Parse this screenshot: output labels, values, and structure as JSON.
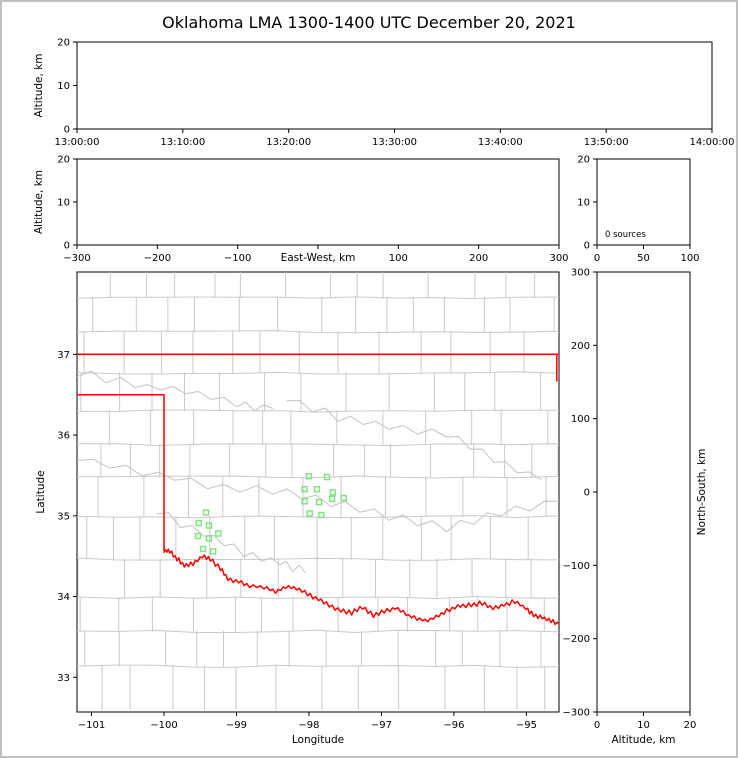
{
  "title": "Oklahoma LMA 1300-1400 UTC December 20, 2021",
  "colors": {
    "page_border": "#c0c0c0",
    "axis": "#000000",
    "text": "#000000",
    "state_border": "#ff0000",
    "county_line": "#c9c9c9",
    "river_line": "#c2c2c2",
    "station": "#7be37b"
  },
  "chart_data": [
    {
      "name": "time-height",
      "type": "scatter",
      "xlabel": "",
      "ylabel": "Altitude, km",
      "xtick_labels": [
        "13:00:00",
        "13:10:00",
        "13:20:00",
        "13:30:00",
        "13:40:00",
        "13:50:00",
        "14:00:00"
      ],
      "ylim": [
        0,
        20
      ],
      "yticks": [
        0,
        10,
        20
      ],
      "points": []
    },
    {
      "name": "ew-height",
      "type": "scatter",
      "xlabel": "East-West, km",
      "ylabel": "Altitude, km",
      "xlim": [
        -300,
        300
      ],
      "xticks": [
        -300,
        -200,
        -100,
        0,
        100,
        200,
        300
      ],
      "hidden_xtick_label": 0,
      "ylim": [
        0,
        20
      ],
      "yticks": [
        0,
        10,
        20
      ],
      "points": []
    },
    {
      "name": "altitude-histogram",
      "type": "bar",
      "annotation": "0 sources",
      "xlim": [
        0,
        100
      ],
      "xticks": [
        0,
        50,
        100
      ],
      "ylim": [
        0,
        20
      ],
      "yticks": [
        0,
        10,
        20
      ],
      "values": []
    },
    {
      "name": "plan-view-map",
      "type": "scatter",
      "xlabel": "Longitude",
      "ylabel": "Latitude",
      "xlim": [
        -101.2,
        -94.55
      ],
      "xticks": [
        -101,
        -100,
        -99,
        -98,
        -97,
        -96,
        -95
      ],
      "ylim": [
        32.57,
        38.02
      ],
      "yticks": [
        33,
        34,
        35,
        36,
        37
      ],
      "stations": [
        [
          -98.0,
          35.49
        ],
        [
          -97.75,
          35.48
        ],
        [
          -98.06,
          35.33
        ],
        [
          -97.89,
          35.33
        ],
        [
          -97.67,
          35.29
        ],
        [
          -98.06,
          35.18
        ],
        [
          -97.86,
          35.17
        ],
        [
          -97.68,
          35.21
        ],
        [
          -97.99,
          35.03
        ],
        [
          -97.83,
          35.01
        ],
        [
          -97.52,
          35.22
        ],
        [
          -99.42,
          35.04
        ],
        [
          -99.52,
          34.91
        ],
        [
          -99.38,
          34.88
        ],
        [
          -99.53,
          34.75
        ],
        [
          -99.38,
          34.72
        ],
        [
          -99.25,
          34.78
        ],
        [
          -99.46,
          34.59
        ],
        [
          -99.32,
          34.56
        ]
      ],
      "state_border": {
        "north": [
          [
            -101.2,
            37.0
          ],
          [
            -94.55,
            37.0
          ]
        ],
        "east": [
          [
            -94.58,
            37.0
          ],
          [
            -94.58,
            36.67
          ]
        ],
        "panhandle": [
          [
            -101.2,
            36.5
          ],
          [
            -100.0,
            36.5
          ],
          [
            -100.0,
            34.57
          ]
        ],
        "red_river": [
          [
            -100.0,
            34.57
          ],
          [
            -99.92,
            34.56
          ],
          [
            -99.82,
            34.47
          ],
          [
            -99.72,
            34.39
          ],
          [
            -99.6,
            34.41
          ],
          [
            -99.47,
            34.5
          ],
          [
            -99.36,
            34.46
          ],
          [
            -99.22,
            34.35
          ],
          [
            -99.12,
            34.22
          ],
          [
            -98.97,
            34.19
          ],
          [
            -98.82,
            34.13
          ],
          [
            -98.62,
            34.12
          ],
          [
            -98.46,
            34.06
          ],
          [
            -98.32,
            34.12
          ],
          [
            -98.17,
            34.11
          ],
          [
            -98.02,
            34.03
          ],
          [
            -97.87,
            33.97
          ],
          [
            -97.72,
            33.9
          ],
          [
            -97.56,
            33.82
          ],
          [
            -97.41,
            33.8
          ],
          [
            -97.26,
            33.87
          ],
          [
            -97.11,
            33.77
          ],
          [
            -96.96,
            33.82
          ],
          [
            -96.81,
            33.86
          ],
          [
            -96.66,
            33.78
          ],
          [
            -96.51,
            33.72
          ],
          [
            -96.36,
            33.7
          ],
          [
            -96.21,
            33.77
          ],
          [
            -96.06,
            33.84
          ],
          [
            -95.91,
            33.88
          ],
          [
            -95.76,
            33.9
          ],
          [
            -95.61,
            33.92
          ],
          [
            -95.46,
            33.86
          ],
          [
            -95.31,
            33.9
          ],
          [
            -95.16,
            33.94
          ],
          [
            -95.01,
            33.86
          ],
          [
            -94.9,
            33.77
          ],
          [
            -94.78,
            33.74
          ],
          [
            -94.66,
            33.7
          ],
          [
            -94.55,
            33.66
          ]
        ]
      },
      "rivers": [
        [
          [
            -101.2,
            35.72
          ],
          [
            -100.3,
            35.55
          ],
          [
            -99.4,
            35.38
          ],
          [
            -98.5,
            35.32
          ],
          [
            -97.7,
            35.16
          ],
          [
            -96.9,
            35.0
          ],
          [
            -96.1,
            34.86
          ],
          [
            -95.35,
            35.05
          ],
          [
            -94.55,
            35.18
          ]
        ],
        [
          [
            -98.3,
            36.45
          ],
          [
            -97.6,
            36.22
          ],
          [
            -96.9,
            36.12
          ],
          [
            -96.1,
            36.0
          ],
          [
            -95.45,
            35.7
          ],
          [
            -94.8,
            35.45
          ]
        ],
        [
          [
            -100.1,
            35.05
          ],
          [
            -99.45,
            34.78
          ],
          [
            -98.9,
            34.55
          ],
          [
            -98.4,
            34.42
          ],
          [
            -98.05,
            34.3
          ]
        ],
        [
          [
            -101.2,
            36.78
          ],
          [
            -100.4,
            36.62
          ],
          [
            -99.7,
            36.55
          ],
          [
            -99.0,
            36.38
          ],
          [
            -98.5,
            36.33
          ]
        ]
      ]
    },
    {
      "name": "ns-height",
      "type": "scatter",
      "xlabel": "Altitude, km",
      "ylabel": "North-South, km",
      "xlim": [
        0,
        20
      ],
      "xticks": [
        0,
        10,
        20
      ],
      "ylim": [
        -300,
        300
      ],
      "yticks": [
        -300,
        -200,
        -100,
        0,
        100,
        200,
        300
      ],
      "points": []
    }
  ]
}
